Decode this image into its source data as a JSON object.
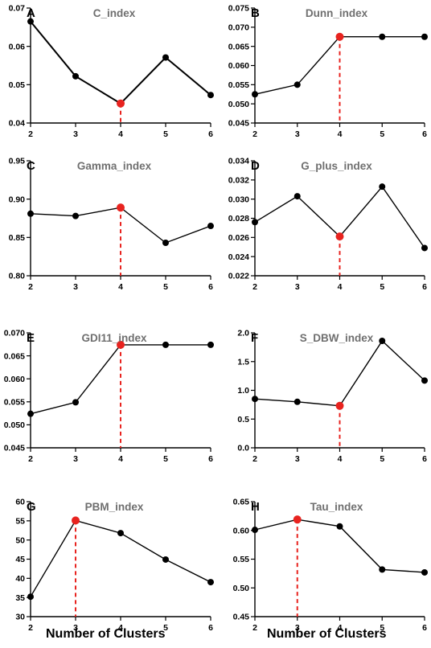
{
  "x_axis_label": "Number of Clusters",
  "chart_data": [
    {
      "panel": "A",
      "title": "C_index",
      "type": "line",
      "x": [
        2,
        3,
        4,
        5,
        6
      ],
      "y": [
        0.0665,
        0.0522,
        0.0451,
        0.0571,
        0.0473
      ],
      "highlight_x": 4,
      "ylim": [
        0.04,
        0.07
      ],
      "yticks": [
        "0.04",
        "0.05",
        "0.06",
        "0.07"
      ],
      "xticks": [
        "2",
        "3",
        "4",
        "5",
        "6"
      ],
      "colors": {
        "line": "#000000",
        "point": "#000000",
        "highlight": "#e8231f"
      }
    },
    {
      "panel": "B",
      "title": "Dunn_index",
      "type": "line",
      "x": [
        2,
        3,
        4,
        5,
        6
      ],
      "y": [
        0.0525,
        0.055,
        0.0675,
        0.0675,
        0.0675
      ],
      "highlight_x": 4,
      "ylim": [
        0.045,
        0.075
      ],
      "yticks": [
        "0.045",
        "0.050",
        "0.055",
        "0.060",
        "0.065",
        "0.070",
        "0.075"
      ],
      "xticks": [
        "2",
        "3",
        "4",
        "5",
        "6"
      ],
      "colors": {
        "line": "#000000",
        "point": "#000000",
        "highlight": "#e8231f"
      }
    },
    {
      "panel": "C",
      "title": "Gamma_index",
      "type": "line",
      "x": [
        2,
        3,
        4,
        5,
        6
      ],
      "y": [
        0.881,
        0.878,
        0.889,
        0.843,
        0.865
      ],
      "highlight_x": 4,
      "ylim": [
        0.8,
        0.95
      ],
      "yticks": [
        "0.80",
        "0.85",
        "0.90",
        "0.95"
      ],
      "xticks": [
        "2",
        "3",
        "4",
        "5",
        "6"
      ],
      "colors": {
        "line": "#000000",
        "point": "#000000",
        "highlight": "#e8231f"
      }
    },
    {
      "panel": "D",
      "title": "G_plus_index",
      "type": "line",
      "x": [
        2,
        3,
        4,
        5,
        6
      ],
      "y": [
        0.0276,
        0.0303,
        0.0261,
        0.0313,
        0.0249
      ],
      "highlight_x": 4,
      "ylim": [
        0.022,
        0.034
      ],
      "yticks": [
        "0.022",
        "0.024",
        "0.026",
        "0.028",
        "0.030",
        "0.032",
        "0.034"
      ],
      "xticks": [
        "2",
        "3",
        "4",
        "5",
        "6"
      ],
      "colors": {
        "line": "#000000",
        "point": "#000000",
        "highlight": "#e8231f"
      }
    },
    {
      "panel": "E",
      "title": "GDI11_index",
      "type": "line",
      "x": [
        2,
        3,
        4,
        5,
        6
      ],
      "y": [
        0.0524,
        0.0549,
        0.0674,
        0.0674,
        0.0674
      ],
      "highlight_x": 4,
      "ylim": [
        0.045,
        0.07
      ],
      "yticks": [
        "0.045",
        "0.050",
        "0.055",
        "0.060",
        "0.065",
        "0.070"
      ],
      "xticks": [
        "2",
        "3",
        "4",
        "5",
        "6"
      ],
      "colors": {
        "line": "#000000",
        "point": "#000000",
        "highlight": "#e8231f"
      }
    },
    {
      "panel": "F",
      "title": "S_DBW_index",
      "type": "line",
      "x": [
        2,
        3,
        4,
        5,
        6
      ],
      "y": [
        0.85,
        0.8,
        0.73,
        1.86,
        1.17
      ],
      "highlight_x": 4,
      "ylim": [
        0,
        2
      ],
      "yticks": [
        "0.0",
        "0.5",
        "1.0",
        "1.5",
        "2.0"
      ],
      "xticks": [
        "2",
        "3",
        "4",
        "5",
        "6"
      ],
      "colors": {
        "line": "#000000",
        "point": "#000000",
        "highlight": "#e8231f"
      }
    },
    {
      "panel": "G",
      "title": "PBM_index",
      "type": "line",
      "x": [
        2,
        3,
        4,
        5,
        6
      ],
      "y": [
        35.2,
        55.1,
        51.8,
        44.9,
        39.0
      ],
      "highlight_x": 3,
      "ylim": [
        30,
        60
      ],
      "yticks": [
        "30",
        "35",
        "40",
        "45",
        "50",
        "55",
        "60"
      ],
      "xticks": [
        "2",
        "3",
        "4",
        "5",
        "6"
      ],
      "colors": {
        "line": "#000000",
        "point": "#000000",
        "highlight": "#e8231f"
      }
    },
    {
      "panel": "H",
      "title": "Tau_index",
      "type": "line",
      "x": [
        2,
        3,
        4,
        5,
        6
      ],
      "y": [
        0.601,
        0.619,
        0.607,
        0.532,
        0.527
      ],
      "highlight_x": 3,
      "ylim": [
        0.45,
        0.65
      ],
      "yticks": [
        "0.45",
        "0.50",
        "0.55",
        "0.60",
        "0.65"
      ],
      "xticks": [
        "2",
        "3",
        "4",
        "5",
        "6"
      ],
      "colors": {
        "line": "#000000",
        "point": "#000000",
        "highlight": "#e8231f"
      }
    }
  ]
}
